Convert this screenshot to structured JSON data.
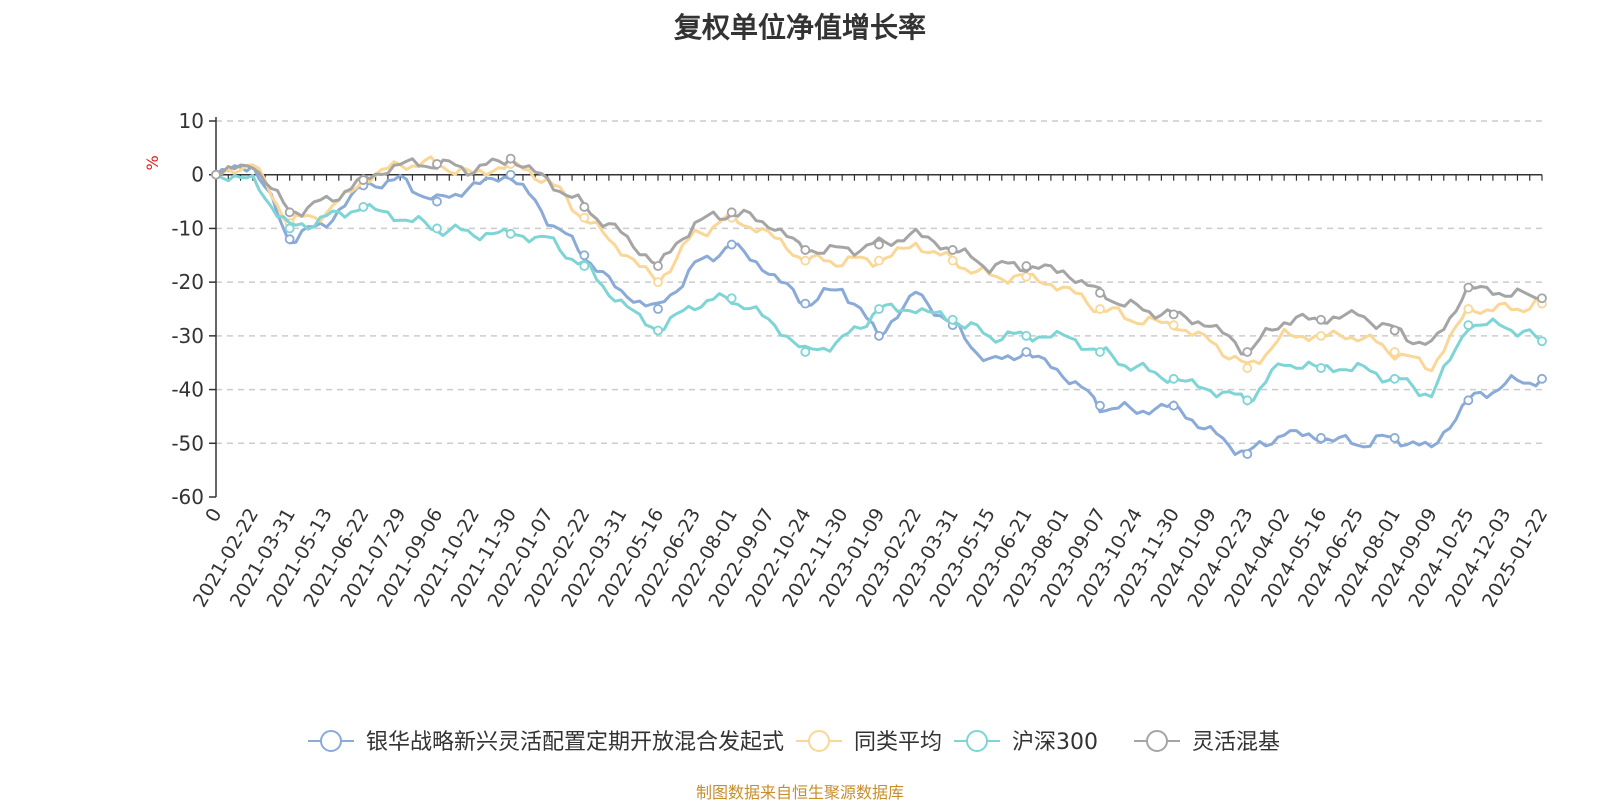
{
  "chart_data": {
    "type": "line",
    "title": "复权单位净值增长率",
    "ylabel": "%",
    "ylim": [
      -60,
      10
    ],
    "yticks": [
      10,
      0,
      -10,
      -20,
      -30,
      -40,
      -50,
      -60
    ],
    "categories": [
      "0",
      "2021-02-22",
      "2021-03-31",
      "2021-05-13",
      "2021-06-22",
      "2021-07-29",
      "2021-09-06",
      "2021-10-22",
      "2021-11-30",
      "2022-01-07",
      "2022-02-22",
      "2022-03-31",
      "2022-05-16",
      "2022-06-23",
      "2022-08-01",
      "2022-09-07",
      "2022-10-24",
      "2022-11-30",
      "2023-01-09",
      "2023-02-22",
      "2023-03-31",
      "2023-05-15",
      "2023-06-21",
      "2023-08-01",
      "2023-09-07",
      "2023-10-24",
      "2023-11-30",
      "2024-01-09",
      "2024-02-23",
      "2024-04-02",
      "2024-05-16",
      "2024-06-25",
      "2024-08-01",
      "2024-09-09",
      "2024-10-25",
      "2024-12-03",
      "2025-01-22"
    ],
    "series": [
      {
        "name": "银华战略新兴灵活配置定期开放混合发起式",
        "color": "#8aaad8",
        "values": [
          0,
          2,
          -12,
          -9,
          -2,
          -1,
          -5,
          -2,
          0,
          -8,
          -15,
          -22,
          -25,
          -17,
          -13,
          -18,
          -24,
          -21,
          -30,
          -22,
          -28,
          -35,
          -33,
          -37,
          -43,
          -44,
          -43,
          -48,
          -52,
          -48,
          -49,
          -50,
          -49,
          -51,
          -42,
          -39,
          -38
        ]
      },
      {
        "name": "同类平均",
        "color": "#fad797",
        "values": [
          0,
          2,
          -9,
          -7,
          -1,
          2,
          2,
          0,
          2,
          -1,
          -8,
          -14,
          -20,
          -11,
          -8,
          -11,
          -16,
          -16,
          -16,
          -13,
          -16,
          -19,
          -19,
          -21,
          -25,
          -27,
          -28,
          -31,
          -36,
          -30,
          -30,
          -30,
          -33,
          -36,
          -25,
          -25,
          -24
        ]
      },
      {
        "name": "沪深300",
        "color": "#7fd4d6",
        "values": [
          0,
          -1,
          -10,
          -8,
          -6,
          -8,
          -10,
          -11,
          -11,
          -12,
          -17,
          -24,
          -29,
          -24,
          -23,
          -27,
          -33,
          -31,
          -25,
          -25,
          -27,
          -30,
          -30,
          -30,
          -33,
          -36,
          -38,
          -40,
          -42,
          -35,
          -36,
          -36,
          -38,
          -41,
          -28,
          -28,
          -31
        ]
      },
      {
        "name": "灵活混基",
        "color": "#a5a5a5",
        "values": [
          0,
          2,
          -7,
          -5,
          -1,
          2,
          2,
          1,
          3,
          -1,
          -6,
          -11,
          -17,
          -9,
          -7,
          -9,
          -14,
          -14,
          -13,
          -11,
          -14,
          -17,
          -17,
          -18,
          -22,
          -25,
          -26,
          -28,
          -33,
          -27,
          -27,
          -26,
          -29,
          -32,
          -21,
          -22,
          -23
        ]
      }
    ]
  },
  "footer": {
    "source": "制图数据来自恒生聚源数据库"
  }
}
